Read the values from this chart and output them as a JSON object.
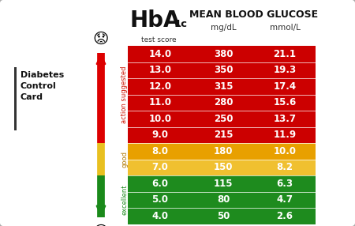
{
  "rows": [
    {
      "hba1c": "14.0",
      "mgdl": "380",
      "mmol": "21.1",
      "color": "#cc0000"
    },
    {
      "hba1c": "13.0",
      "mgdl": "350",
      "mmol": "19.3",
      "color": "#cc0000"
    },
    {
      "hba1c": "12.0",
      "mgdl": "315",
      "mmol": "17.4",
      "color": "#cc0000"
    },
    {
      "hba1c": "11.0",
      "mgdl": "280",
      "mmol": "15.6",
      "color": "#cc0000"
    },
    {
      "hba1c": "10.0",
      "mgdl": "250",
      "mmol": "13.7",
      "color": "#cc0000"
    },
    {
      "hba1c": "9.0",
      "mgdl": "215",
      "mmol": "11.9",
      "color": "#cc0000"
    },
    {
      "hba1c": "8.0",
      "mgdl": "180",
      "mmol": "10.0",
      "color": "#e8a000"
    },
    {
      "hba1c": "7.0",
      "mgdl": "150",
      "mmol": "8.2",
      "color": "#f0c030"
    },
    {
      "hba1c": "6.0",
      "mgdl": "115",
      "mmol": "6.3",
      "color": "#1e8b1e"
    },
    {
      "hba1c": "5.0",
      "mgdl": "80",
      "mmol": "4.7",
      "color": "#1e8b1e"
    },
    {
      "hba1c": "4.0",
      "mgdl": "50",
      "mmol": "2.6",
      "color": "#1e8b1e"
    }
  ],
  "label_action": "action suggested",
  "label_good": "good",
  "label_excellent": "excellent",
  "card_line1": "Diabetes",
  "card_line2": "Control",
  "card_line3": "Card",
  "hba1c_big": "HbA",
  "hba1c_sub": "1c",
  "hba1c_small": "test score",
  "mbg_title": "MEAN BLOOD GLUCOSE",
  "mgdl": "mg/dL",
  "mmol": "mmol/L",
  "bg_gray": "#d8d8d8",
  "card_bg": "#ffffff",
  "red_arrow": "#dd0000",
  "green_arrow": "#1a8a1a",
  "yellow_mid": "#e8c020"
}
